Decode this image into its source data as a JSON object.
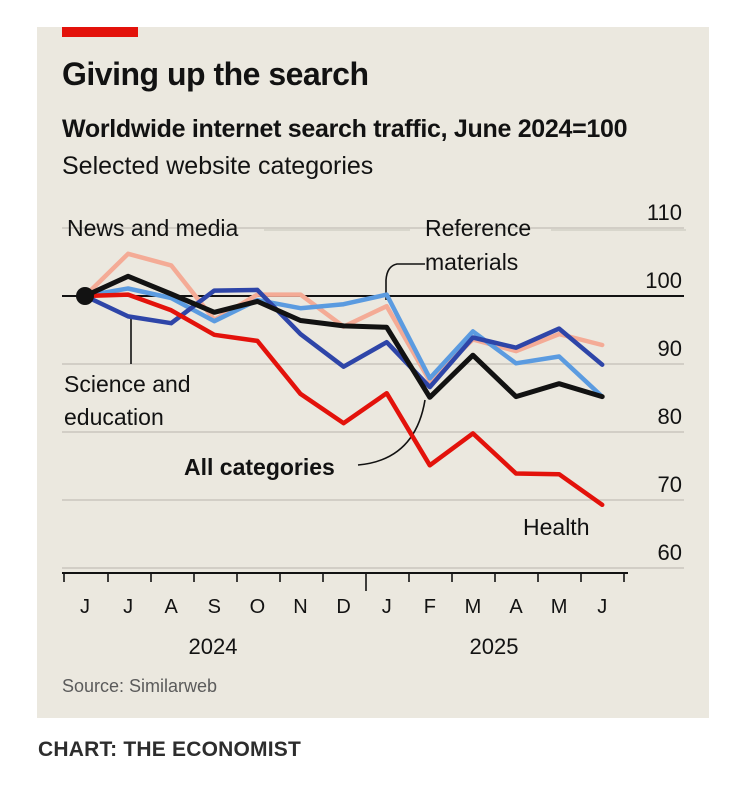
{
  "header": {
    "title": "Giving up the search",
    "subtitle": "Worldwide internet search traffic, June 2024=100",
    "description": "Selected website categories"
  },
  "footer": {
    "source": "Source: Similarweb",
    "credit": "CHART: THE ECONOMIST"
  },
  "colors": {
    "background": "#ebe8df",
    "accent_red": "#e3120b",
    "all_categories": "#121212",
    "health": "#e3120b",
    "news_and_media": "#2e45a8",
    "science_and_education": "#5b9be0",
    "reference_materials": "#f4ab96",
    "gridline": "#c9c6bd"
  },
  "chart_data": {
    "type": "line",
    "title": "Giving up the search",
    "subtitle": "Worldwide internet search traffic, June 2024=100",
    "x": [
      "J",
      "J",
      "A",
      "S",
      "O",
      "N",
      "D",
      "J",
      "F",
      "M",
      "A",
      "M",
      "J"
    ],
    "x_dates": [
      "2024-06",
      "2024-07",
      "2024-08",
      "2024-09",
      "2024-10",
      "2024-11",
      "2024-12",
      "2025-01",
      "2025-02",
      "2025-03",
      "2025-04",
      "2025-05",
      "2025-06"
    ],
    "year_labels": [
      "2024",
      "2025"
    ],
    "ylim": [
      60,
      110
    ],
    "yticks": [
      60,
      70,
      80,
      90,
      100,
      110
    ],
    "grid": true,
    "baseline": 100,
    "series": [
      {
        "name": "Reference materials",
        "color_key": "reference_materials",
        "values": [
          100,
          106.2,
          104.5,
          96.5,
          100.2,
          100.2,
          95.5,
          98.5,
          87.5,
          93.6,
          91.9,
          94.4,
          92.8
        ]
      },
      {
        "name": "Science and education",
        "color_key": "science_and_education",
        "values": [
          100,
          101.1,
          99.7,
          96.3,
          99.4,
          98.2,
          98.8,
          100.2,
          87.9,
          94.8,
          90.1,
          91.1,
          85.2
        ]
      },
      {
        "name": "News and media",
        "color_key": "news_and_media",
        "values": [
          100,
          97.0,
          96.0,
          100.8,
          100.9,
          94.4,
          89.6,
          93.2,
          86.6,
          93.9,
          92.4,
          95.2,
          89.9
        ]
      },
      {
        "name": "Health",
        "color_key": "health",
        "values": [
          100,
          100.2,
          97.9,
          94.3,
          93.4,
          85.6,
          81.3,
          85.7,
          75.1,
          79.8,
          73.9,
          73.8,
          69.3
        ]
      },
      {
        "name": "All categories",
        "color_key": "all_categories",
        "values": [
          100,
          102.9,
          100.3,
          97.6,
          99.2,
          96.4,
          95.6,
          95.4,
          85.1,
          91.3,
          85.2,
          87.1,
          85.2
        ]
      }
    ],
    "annotations": [
      {
        "text": "News and media"
      },
      {
        "text": "Reference"
      },
      {
        "text": "materials"
      },
      {
        "text": "Science and"
      },
      {
        "text": "education"
      },
      {
        "text": "All categories"
      },
      {
        "text": "Health"
      }
    ]
  }
}
